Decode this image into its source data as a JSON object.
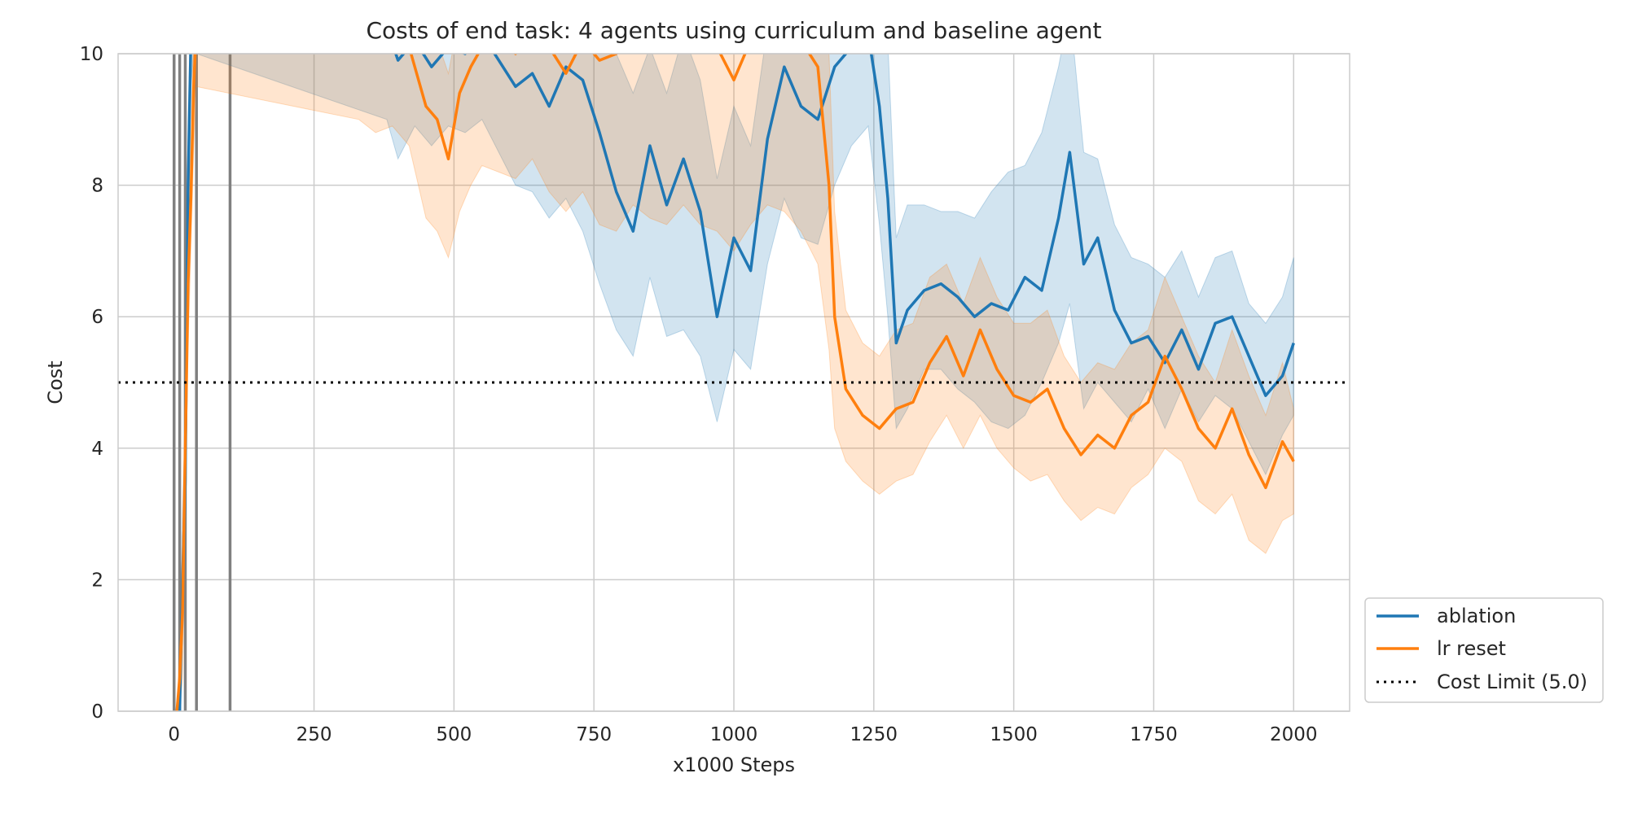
{
  "chart_data": {
    "type": "line",
    "title": "Costs of end task: 4 agents using curriculum and baseline agent",
    "xlabel": "x1000 Steps",
    "ylabel": "Cost",
    "xlim": [
      -100,
      2100
    ],
    "ylim": [
      0,
      10
    ],
    "xticks": [
      0,
      250,
      500,
      750,
      1000,
      1250,
      1500,
      1750,
      2000
    ],
    "yticks": [
      0,
      2,
      4,
      6,
      8,
      10
    ],
    "grid": true,
    "legend_position": "lower-right-outside",
    "cost_limit": {
      "label": "Cost Limit (5.0)",
      "value": 5.0,
      "style": "dotted",
      "color": "#000000"
    },
    "vertical_lines": [
      0,
      10,
      20,
      40,
      100
    ],
    "vertical_line_color": "#808080",
    "series": [
      {
        "name": "ablation",
        "color": "#1f77b4",
        "band_opacity": 0.2,
        "x": [
          10,
          15,
          20,
          25,
          30,
          35,
          40,
          380,
          400,
          430,
          460,
          490,
          520,
          550,
          580,
          610,
          640,
          670,
          700,
          730,
          760,
          790,
          820,
          850,
          880,
          910,
          940,
          970,
          1000,
          1030,
          1060,
          1090,
          1120,
          1150,
          1180,
          1210,
          1240,
          1260,
          1275,
          1290,
          1310,
          1340,
          1370,
          1400,
          1430,
          1460,
          1490,
          1520,
          1550,
          1580,
          1600,
          1625,
          1650,
          1680,
          1710,
          1740,
          1770,
          1800,
          1830,
          1860,
          1890,
          1920,
          1950,
          1980,
          2000
        ],
        "y": [
          0.0,
          2.0,
          3.5,
          8.0,
          10.2,
          10.5,
          10.8,
          10.4,
          9.9,
          10.2,
          9.8,
          10.1,
          10.0,
          10.3,
          9.9,
          9.5,
          9.7,
          9.2,
          9.8,
          9.6,
          8.8,
          7.9,
          7.3,
          8.6,
          7.7,
          8.4,
          7.6,
          6.0,
          7.2,
          6.7,
          8.7,
          9.8,
          9.2,
          9.0,
          9.8,
          10.1,
          10.3,
          9.2,
          7.8,
          5.6,
          6.1,
          6.4,
          6.5,
          6.3,
          6.0,
          6.2,
          6.1,
          6.6,
          6.4,
          7.5,
          8.5,
          6.8,
          7.2,
          6.1,
          5.6,
          5.7,
          5.3,
          5.8,
          5.2,
          5.9,
          6.0,
          5.4,
          4.8,
          5.1,
          5.6
        ],
        "lower": [
          0.0,
          1.0,
          2.5,
          7.0,
          9.5,
          10.0,
          10.0,
          9.0,
          8.4,
          8.9,
          8.6,
          8.9,
          8.8,
          9.0,
          8.5,
          8.0,
          7.9,
          7.5,
          7.8,
          7.3,
          6.5,
          5.8,
          5.4,
          6.6,
          5.7,
          5.8,
          5.4,
          4.4,
          5.5,
          5.2,
          6.8,
          7.8,
          7.2,
          7.1,
          8.0,
          8.6,
          8.9,
          7.4,
          6.0,
          4.3,
          4.6,
          5.2,
          5.2,
          4.9,
          4.7,
          4.4,
          4.3,
          4.5,
          5.0,
          5.6,
          6.2,
          4.6,
          5.0,
          4.7,
          4.4,
          4.9,
          4.3,
          4.9,
          4.4,
          4.8,
          4.6,
          4.1,
          3.6,
          4.2,
          4.5
        ],
        "upper": [
          0.0,
          3.0,
          4.5,
          9.0,
          10.8,
          11.0,
          11.2,
          11.2,
          11.0,
          11.2,
          10.9,
          11.0,
          11.1,
          11.2,
          11.0,
          10.9,
          11.0,
          10.6,
          11.0,
          11.0,
          10.7,
          10.0,
          9.4,
          10.1,
          9.4,
          10.3,
          9.6,
          8.1,
          9.2,
          8.6,
          10.4,
          11.2,
          10.9,
          10.6,
          11.2,
          11.3,
          11.4,
          11.0,
          10.2,
          7.2,
          7.7,
          7.7,
          7.6,
          7.6,
          7.5,
          7.9,
          8.2,
          8.3,
          8.8,
          9.8,
          10.7,
          8.5,
          8.4,
          7.4,
          6.9,
          6.8,
          6.6,
          7.0,
          6.3,
          6.9,
          7.0,
          6.2,
          5.9,
          6.3,
          6.9
        ]
      },
      {
        "name": "lr reset",
        "color": "#ff7f0e",
        "band_opacity": 0.2,
        "x": [
          5,
          10,
          15,
          20,
          25,
          30,
          35,
          40,
          330,
          360,
          390,
          420,
          450,
          470,
          490,
          510,
          530,
          550,
          580,
          610,
          640,
          670,
          700,
          730,
          760,
          790,
          820,
          850,
          880,
          910,
          940,
          970,
          1000,
          1030,
          1060,
          1090,
          1120,
          1150,
          1170,
          1180,
          1200,
          1230,
          1260,
          1290,
          1320,
          1350,
          1380,
          1410,
          1440,
          1470,
          1500,
          1530,
          1560,
          1590,
          1620,
          1650,
          1680,
          1710,
          1740,
          1770,
          1800,
          1830,
          1860,
          1890,
          1920,
          1950,
          1980,
          2000
        ],
        "y": [
          0.0,
          0.5,
          1.5,
          4.0,
          6.5,
          7.8,
          9.5,
          10.5,
          10.5,
          10.2,
          10.4,
          10.1,
          9.2,
          9.0,
          8.4,
          9.4,
          9.8,
          10.1,
          10.2,
          10.0,
          10.3,
          10.1,
          9.7,
          10.2,
          9.9,
          10.0,
          10.3,
          10.2,
          10.1,
          10.4,
          10.2,
          10.1,
          9.6,
          10.2,
          10.5,
          10.3,
          10.2,
          9.8,
          8.0,
          6.0,
          4.9,
          4.5,
          4.3,
          4.6,
          4.7,
          5.3,
          5.7,
          5.1,
          5.8,
          5.2,
          4.8,
          4.7,
          4.9,
          4.3,
          3.9,
          4.2,
          4.0,
          4.5,
          4.7,
          5.4,
          4.9,
          4.3,
          4.0,
          4.6,
          3.9,
          3.4,
          4.1,
          3.8
        ],
        "lower": [
          0.0,
          0.0,
          0.5,
          3.0,
          5.5,
          7.0,
          8.5,
          9.5,
          9.0,
          8.8,
          8.9,
          8.6,
          7.5,
          7.3,
          6.9,
          7.6,
          8.0,
          8.3,
          8.2,
          8.1,
          8.4,
          7.9,
          7.6,
          7.9,
          7.4,
          7.3,
          7.7,
          7.5,
          7.4,
          7.7,
          7.4,
          7.3,
          7.0,
          7.4,
          7.7,
          7.6,
          7.3,
          6.8,
          5.5,
          4.3,
          3.8,
          3.5,
          3.3,
          3.5,
          3.6,
          4.1,
          4.5,
          4.0,
          4.5,
          4.0,
          3.7,
          3.5,
          3.6,
          3.2,
          2.9,
          3.1,
          3.0,
          3.4,
          3.6,
          4.0,
          3.8,
          3.2,
          3.0,
          3.3,
          2.6,
          2.4,
          2.9,
          3.0
        ],
        "upper": [
          0.0,
          1.0,
          2.5,
          5.0,
          7.5,
          8.6,
          10.5,
          11.5,
          11.2,
          11.0,
          11.2,
          11.0,
          10.4,
          10.2,
          9.7,
          10.6,
          11.0,
          11.2,
          11.4,
          11.2,
          11.4,
          11.3,
          11.0,
          11.3,
          11.1,
          11.2,
          11.5,
          11.4,
          11.3,
          11.6,
          11.4,
          11.3,
          10.9,
          11.4,
          11.6,
          11.5,
          11.4,
          11.1,
          10.0,
          7.6,
          6.1,
          5.6,
          5.4,
          5.8,
          5.9,
          6.6,
          6.8,
          6.2,
          6.9,
          6.3,
          5.9,
          5.9,
          6.1,
          5.4,
          5.0,
          5.3,
          5.2,
          5.6,
          5.8,
          6.6,
          6.0,
          5.4,
          5.0,
          5.8,
          5.1,
          4.5,
          5.3,
          4.6
        ]
      }
    ]
  }
}
